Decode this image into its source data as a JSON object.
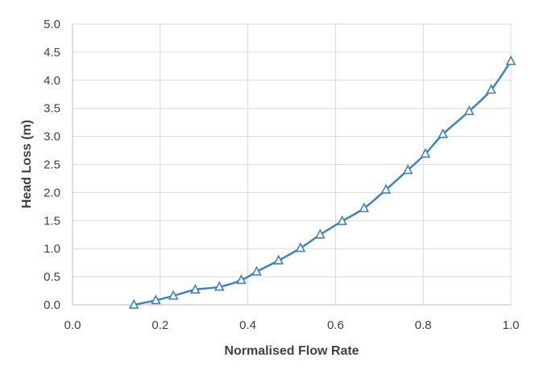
{
  "chart_data": {
    "type": "line",
    "title": "",
    "xlabel": "Normalised Flow Rate",
    "ylabel": "Head Loss (m)",
    "xlim": [
      0.0,
      1.0
    ],
    "ylim": [
      0.0,
      5.0
    ],
    "x_ticks": [
      "0.0",
      "0.2",
      "0.4",
      "0.6",
      "0.8",
      "1.0"
    ],
    "y_ticks": [
      "0.0",
      "0.5",
      "1.0",
      "1.5",
      "2.0",
      "2.5",
      "3.0",
      "3.5",
      "4.0",
      "4.5",
      "5.0"
    ],
    "grid": true,
    "legend": "none",
    "marker": "triangle-open",
    "series": [
      {
        "color": "#3f81c5",
        "x": [
          0.14,
          0.19,
          0.23,
          0.28,
          0.335,
          0.385,
          0.42,
          0.47,
          0.52,
          0.565,
          0.615,
          0.665,
          0.715,
          0.765,
          0.805,
          0.845,
          0.905,
          0.955,
          1.0
        ],
        "y": [
          0.0,
          0.08,
          0.16,
          0.27,
          0.32,
          0.44,
          0.59,
          0.79,
          1.01,
          1.25,
          1.49,
          1.72,
          2.05,
          2.4,
          2.69,
          3.04,
          3.45,
          3.83,
          4.34
        ]
      }
    ]
  }
}
